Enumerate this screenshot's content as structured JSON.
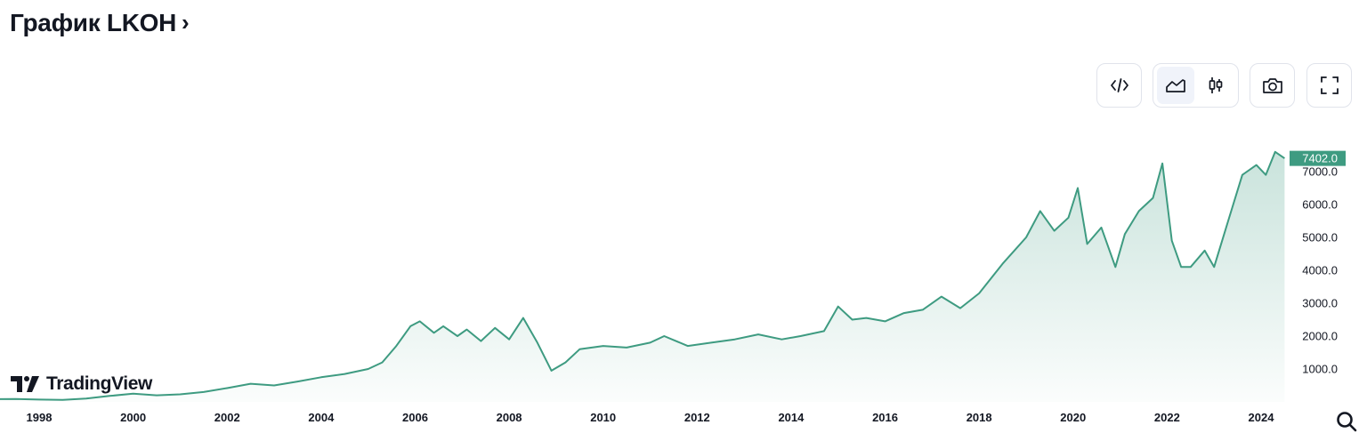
{
  "header": {
    "title": "График LKOH",
    "chevron": "›"
  },
  "toolbar": {
    "embed_icon": "code-icon",
    "area_icon": "area-chart-icon",
    "candles_icon": "candlestick-icon",
    "snapshot_icon": "camera-icon",
    "fullscreen_icon": "fullscreen-icon"
  },
  "branding": {
    "name": "TradingView"
  },
  "chart_data": {
    "type": "area",
    "title": "",
    "xlabel": "",
    "ylabel": "",
    "line_color": "#3e9b81",
    "fill_color": "#3e9b81",
    "grid": false,
    "x_ticks": [
      "1998",
      "2000",
      "2002",
      "2004",
      "2006",
      "2008",
      "2010",
      "2012",
      "2014",
      "2016",
      "2018",
      "2020",
      "2022",
      "2024"
    ],
    "y_ticks": [
      "1000.0",
      "2000.0",
      "3000.0",
      "4000.0",
      "5000.0",
      "6000.0",
      "7000.0"
    ],
    "ylim": [
      0,
      8000
    ],
    "last_value": "7402.0",
    "x": [
      1997.0,
      1997.5,
      1998.0,
      1998.5,
      1999.0,
      1999.5,
      2000.0,
      2000.5,
      2001.0,
      2001.5,
      2002.0,
      2002.5,
      2003.0,
      2003.5,
      2004.0,
      2004.5,
      2005.0,
      2005.3,
      2005.6,
      2005.9,
      2006.1,
      2006.4,
      2006.6,
      2006.9,
      2007.1,
      2007.4,
      2007.7,
      2008.0,
      2008.3,
      2008.6,
      2008.9,
      2009.2,
      2009.5,
      2010.0,
      2010.5,
      2011.0,
      2011.3,
      2011.8,
      2012.3,
      2012.8,
      2013.3,
      2013.8,
      2014.2,
      2014.7,
      2015.0,
      2015.3,
      2015.6,
      2016.0,
      2016.4,
      2016.8,
      2017.2,
      2017.6,
      2018.0,
      2018.5,
      2019.0,
      2019.3,
      2019.6,
      2019.9,
      2020.1,
      2020.3,
      2020.6,
      2020.9,
      2021.1,
      2021.4,
      2021.7,
      2021.9,
      2022.1,
      2022.3,
      2022.5,
      2022.8,
      2023.0,
      2023.3,
      2023.6,
      2023.9,
      2024.1,
      2024.3,
      2024.5
    ],
    "y": [
      80,
      90,
      70,
      60,
      100,
      180,
      250,
      200,
      230,
      300,
      420,
      550,
      500,
      620,
      750,
      850,
      1000,
      1200,
      1700,
      2300,
      2450,
      2100,
      2300,
      2000,
      2200,
      1850,
      2250,
      1900,
      2550,
      1800,
      950,
      1200,
      1600,
      1700,
      1650,
      1800,
      2000,
      1700,
      1800,
      1900,
      2050,
      1900,
      2000,
      2150,
      2900,
      2500,
      2550,
      2450,
      2700,
      2800,
      3200,
      2850,
      3300,
      4200,
      5000,
      5800,
      5200,
      5600,
      6500,
      4800,
      5300,
      4100,
      5100,
      5800,
      6200,
      7250,
      4900,
      4100,
      4100,
      4600,
      4100,
      5500,
      6900,
      7200,
      6900,
      7600,
      7402
    ]
  }
}
